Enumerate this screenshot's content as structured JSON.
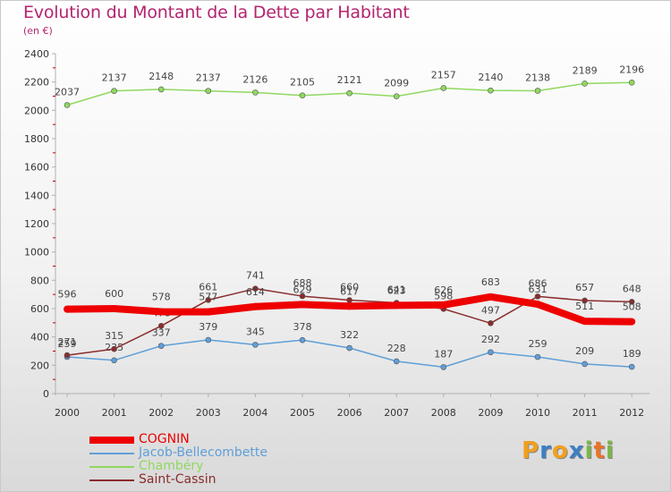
{
  "title": "Evolution du Montant de la Dette par Habitant",
  "subtitle": "(en €)",
  "logo": {
    "letters": [
      "P",
      "r",
      "o",
      "x",
      "i",
      "t",
      "i"
    ],
    "colors": [
      "#f0a020",
      "#3d7fc4",
      "#f0a020",
      "#3d7fc4",
      "#7ab648",
      "#e8742a",
      "#7ab648"
    ]
  },
  "chart_data": {
    "type": "line",
    "title": "Evolution du Montant de la Dette par Habitant",
    "ylabel": "(en €)",
    "xlabel": "",
    "ylim": [
      0,
      2400
    ],
    "yticks": [
      0,
      200,
      400,
      600,
      800,
      1000,
      1200,
      1400,
      1600,
      1800,
      2000,
      2200,
      2400
    ],
    "grid": false,
    "legend": "bottom-left",
    "x": [
      "2000",
      "2001",
      "2002",
      "2003",
      "2004",
      "2005",
      "2006",
      "2007",
      "2008",
      "2009",
      "2010",
      "2011",
      "2012"
    ],
    "series": [
      {
        "name": "COGNIN",
        "color": "#ee0000",
        "values": [
          596,
          600,
          578,
          577,
          614,
          629,
          617,
          623,
          626,
          683,
          631,
          511,
          508
        ]
      },
      {
        "name": "Jacob-Bellecombette",
        "color": "#5f9fd8",
        "values": [
          259,
          235,
          337,
          379,
          345,
          378,
          322,
          228,
          187,
          292,
          259,
          209,
          189
        ]
      },
      {
        "name": "Chambéry",
        "color": "#90d860",
        "values": [
          2037,
          2137,
          2148,
          2137,
          2126,
          2105,
          2121,
          2099,
          2157,
          2140,
          2138,
          2189,
          2196
        ]
      },
      {
        "name": "Saint-Cassin",
        "color": "#8b2c2c",
        "values": [
          271,
          315,
          478,
          661,
          741,
          688,
          660,
          641,
          598,
          497,
          686,
          657,
          648
        ]
      }
    ]
  }
}
